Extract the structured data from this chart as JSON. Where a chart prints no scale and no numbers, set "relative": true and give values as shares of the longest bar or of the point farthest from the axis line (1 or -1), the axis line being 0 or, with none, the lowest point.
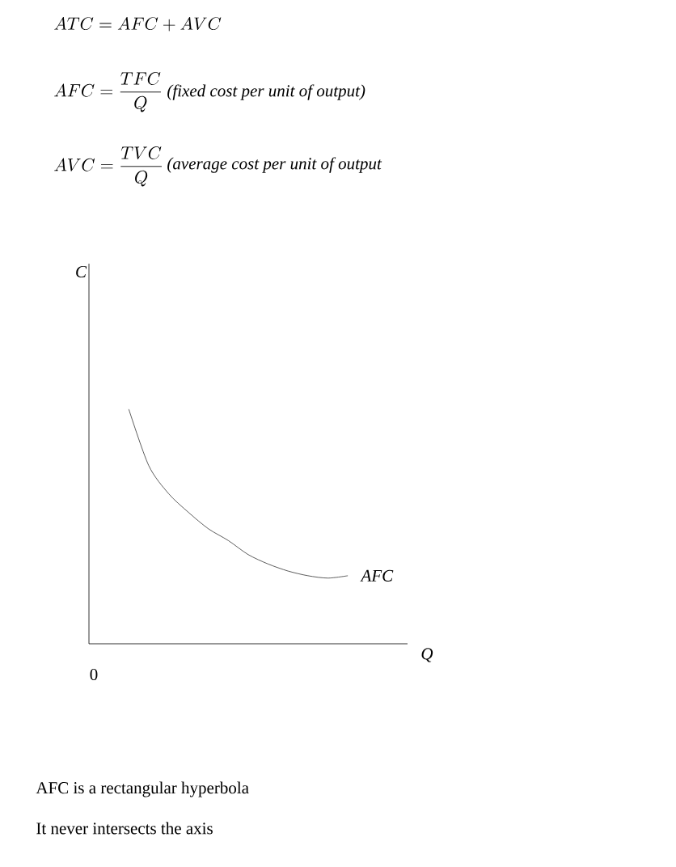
{
  "chart_data": {
    "type": "line",
    "relative": true,
    "xlabel": "Q",
    "categories": [
      null,
      null,
      null,
      null,
      null,
      null,
      null,
      null,
      null,
      null,
      null,
      null
    ],
    "series": [
      {
        "name": "AFC",
        "color": "#333333",
        "values": [
          1,
          0.76,
          0.64,
          0.56,
          0.49,
          0.44,
          0.38,
          0.34,
          0.31,
          0.29,
          0.28,
          0.29
        ]
      }
    ],
    "annotations": [
      "ATC = AFC + AVC",
      "AFC = \\frac{TFC}{Q}",
      "(fixed cost per unit of output)",
      "AVC = \\frac{TVC}{Q}",
      "(average cost per unit of output",
      "0",
      "AFC is a rectangular hyperbola",
      "It never intersects the axis",
      "C"
    ]
  }
}
